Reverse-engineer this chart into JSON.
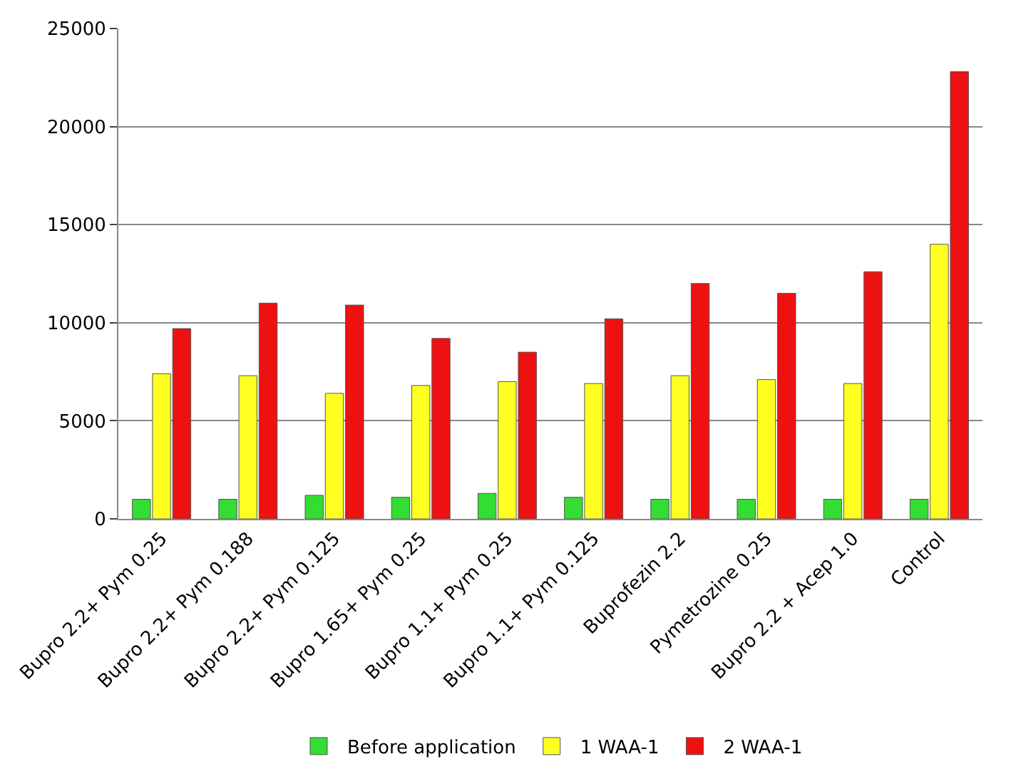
{
  "chart_data": {
    "type": "bar",
    "categories": [
      "Bupro 2.2+ Pym 0.25",
      "Bupro 2.2+ Pym 0.188",
      "Bupro 2.2+ Pym 0.125",
      "Bupro 1.65+ Pym 0.25",
      "Bupro 1.1+ Pym 0.25",
      "Bupro 1.1+ Pym 0.125",
      "Buprofezin 2.2",
      "Pymetrozine 0.25",
      "Bupro 2.2 + Acep 1.0",
      "Control"
    ],
    "series": [
      {
        "name": "Before application",
        "color": "#33dd33",
        "values": [
          1000,
          1000,
          1200,
          1100,
          1300,
          1100,
          1000,
          1000,
          1000,
          1000
        ]
      },
      {
        "name": "1 WAA-1",
        "color": "#ffff22",
        "values": [
          7400,
          7300,
          6400,
          6800,
          7000,
          6900,
          7300,
          7100,
          6900,
          14000
        ]
      },
      {
        "name": "2 WAA-1",
        "color": "#ee1111",
        "values": [
          9700,
          11000,
          10900,
          9200,
          8500,
          10200,
          12000,
          11500,
          12600,
          22800
        ]
      }
    ],
    "ylim": [
      0,
      25000
    ],
    "yticks": [
      0,
      5000,
      10000,
      15000,
      20000,
      25000
    ],
    "grid": "y",
    "legend": "bottom"
  }
}
